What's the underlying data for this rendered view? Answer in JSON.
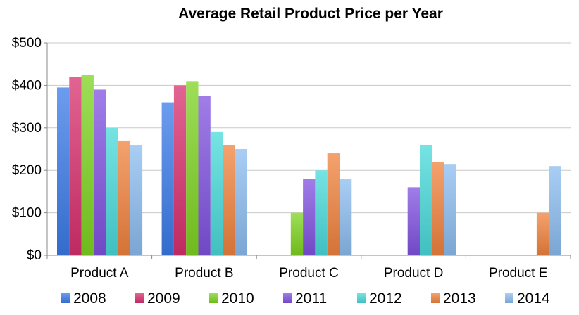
{
  "chart_data": {
    "type": "bar",
    "title": "Average Retail Product Price per Year",
    "xlabel": "",
    "ylabel": "",
    "ylim": [
      0,
      500
    ],
    "yticks": [
      0,
      100,
      200,
      300,
      400,
      500
    ],
    "ytick_labels": [
      "$0",
      "$100",
      "$200",
      "$300",
      "$400",
      "$500"
    ],
    "grid": true,
    "legend_position": "bottom",
    "categories": [
      "Product A",
      "Product B",
      "Product C",
      "Product D",
      "Product E"
    ],
    "series": [
      {
        "name": "2008",
        "color": "#3b7be8",
        "values": [
          395,
          360,
          null,
          null,
          null
        ]
      },
      {
        "name": "2009",
        "color": "#d8306e",
        "values": [
          420,
          400,
          null,
          null,
          null
        ]
      },
      {
        "name": "2010",
        "color": "#7ed321",
        "values": [
          425,
          410,
          100,
          null,
          null
        ]
      },
      {
        "name": "2011",
        "color": "#8052e0",
        "values": [
          390,
          375,
          180,
          160,
          null
        ]
      },
      {
        "name": "2012",
        "color": "#4ad9da",
        "values": [
          300,
          290,
          200,
          260,
          null
        ]
      },
      {
        "name": "2013",
        "color": "#f0833e",
        "values": [
          270,
          260,
          240,
          220,
          100
        ]
      },
      {
        "name": "2014",
        "color": "#8cbdf0",
        "values": [
          260,
          250,
          180,
          215,
          210
        ]
      }
    ]
  }
}
